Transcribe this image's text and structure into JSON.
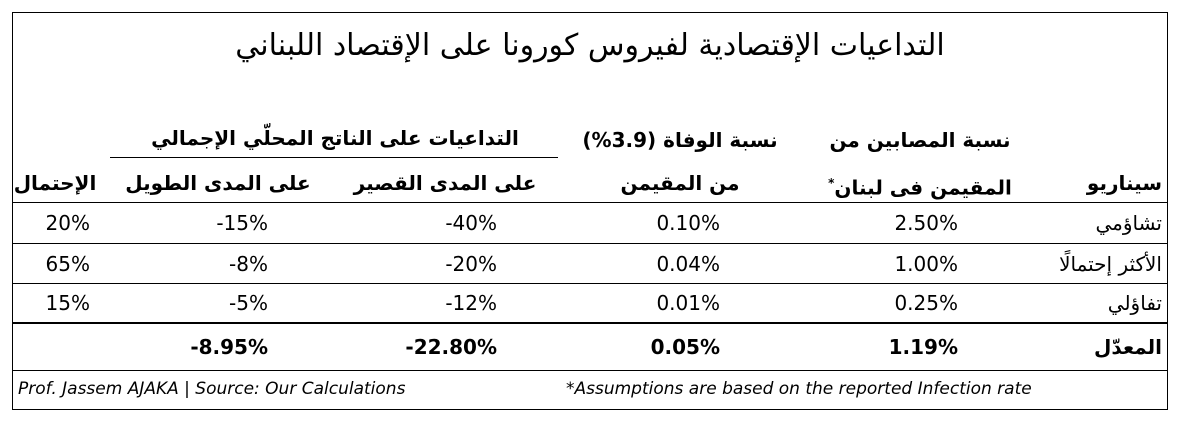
{
  "title": "التداعيات الإقتصادية لفيروس كورونا على الإقتصاد اللبناني",
  "header": {
    "scenario": "سيناريو",
    "infection": [
      "نسبة المصابين من",
      "المقيمن فى لبنان"
    ],
    "infection_note": "*",
    "death": [
      "نسبة الوفاة (3.9%)",
      "من المقيمن"
    ],
    "gdp": "التداعيات على الناتج المحلّي الإجمالي",
    "short_term": "على المدى القصير",
    "long_term": "على المدى الطويل",
    "probability": "الإحتمال"
  },
  "rows": [
    [
      "تشاؤمي",
      "2.50%",
      "0.10%",
      "-40%",
      "-15%",
      "20%"
    ],
    [
      "الأكثر إحتمالًا",
      "1.00%",
      "0.04%",
      "-20%",
      "-8%",
      "65%"
    ],
    [
      "تفاؤلي",
      "0.25%",
      "0.01%",
      "-12%",
      "-5%",
      "15%"
    ]
  ],
  "average": [
    "المعدّل",
    "1.19%",
    "0.05%",
    "-22.80%",
    "-8.95%"
  ],
  "footer": {
    "left": "Prof. Jassem AJAKA | Source: Our Calculations",
    "right": "*Assumptions are based on the reported Infection rate"
  }
}
